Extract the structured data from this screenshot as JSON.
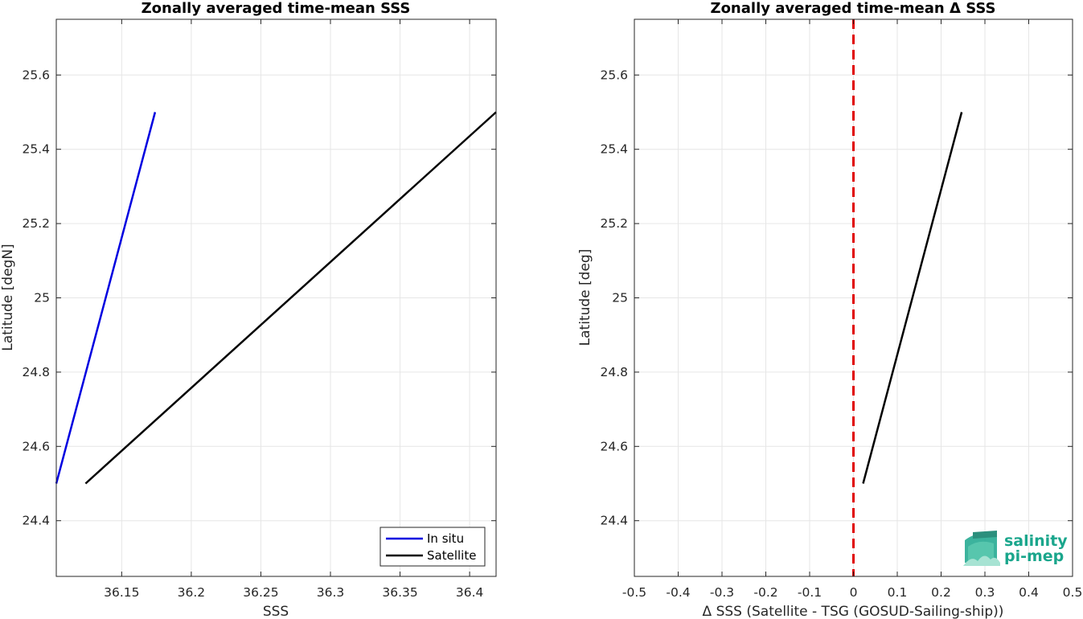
{
  "chart_data": [
    {
      "type": "line",
      "title": "Zonally averaged time-mean SSS",
      "xlabel": "SSS",
      "ylabel": "Latitude [degN]",
      "xlim": [
        36.103,
        36.419
      ],
      "ylim": [
        24.25,
        25.75
      ],
      "xticks": [
        36.15,
        36.2,
        36.25,
        36.3,
        36.35,
        36.4
      ],
      "xtick_labels": [
        "36.15",
        "36.2",
        "36.25",
        "36.3",
        "36.35",
        "36.4"
      ],
      "yticks": [
        24.4,
        24.6,
        24.8,
        25,
        25.2,
        25.4,
        25.6
      ],
      "ytick_labels": [
        "24.4",
        "24.6",
        "24.8",
        "25",
        "25.2",
        "25.4",
        "25.6"
      ],
      "grid": true,
      "legend_position": "bottom-right",
      "series": [
        {
          "name": "In situ",
          "color": "#0000e0",
          "x": [
            36.103,
            36.174
          ],
          "y": [
            24.5,
            25.5
          ]
        },
        {
          "name": "Satellite",
          "color": "#000000",
          "x": [
            36.124,
            36.419
          ],
          "y": [
            24.5,
            25.5
          ]
        }
      ]
    },
    {
      "type": "line",
      "title": "Zonally averaged time-mean Δ SSS",
      "xlabel": "Δ SSS (Satellite - TSG (GOSUD-Sailing-ship))",
      "ylabel": "Latitude [deg]",
      "xlim": [
        -0.5,
        0.5
      ],
      "ylim": [
        24.25,
        25.75
      ],
      "xticks": [
        -0.5,
        -0.4,
        -0.3,
        -0.2,
        -0.1,
        0,
        0.1,
        0.2,
        0.3,
        0.4,
        0.5
      ],
      "xtick_labels": [
        "-0.5",
        "-0.4",
        "-0.3",
        "-0.2",
        "-0.1",
        "0",
        "0.1",
        "0.2",
        "0.3",
        "0.4",
        "0.5"
      ],
      "yticks": [
        24.4,
        24.6,
        24.8,
        25,
        25.2,
        25.4,
        25.6
      ],
      "ytick_labels": [
        "24.4",
        "24.6",
        "24.8",
        "25",
        "25.2",
        "25.4",
        "25.6"
      ],
      "grid": true,
      "reference_line": {
        "x": 0,
        "color": "#e00000",
        "style": "dashed"
      },
      "series": [
        {
          "color": "#000000",
          "x": [
            0.022,
            0.247
          ],
          "y": [
            24.5,
            25.5
          ]
        }
      ]
    }
  ],
  "logo": {
    "line1": "salinity",
    "line2": "pi-mep",
    "color": "#1aa68c"
  }
}
